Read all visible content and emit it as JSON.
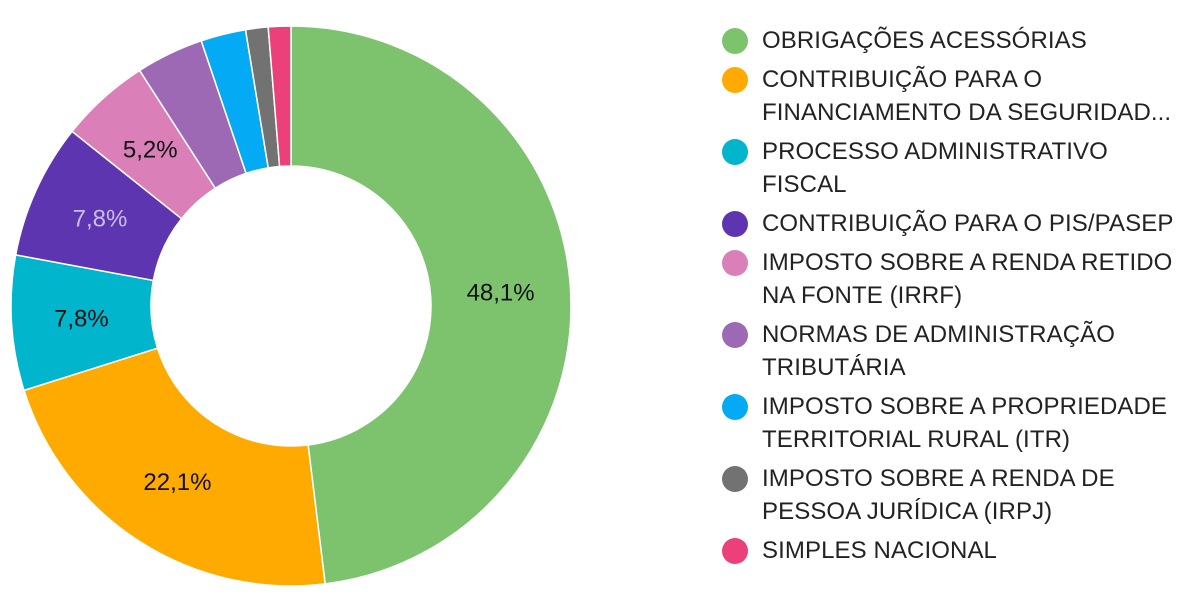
{
  "chart_data": {
    "type": "pie",
    "style": "donut",
    "legend_position": "right",
    "slices": [
      {
        "label": "OBRIGAÇÕES ACESSÓRIAS",
        "value": 48.1,
        "color": "#7dc36e",
        "value_label": "48,1%",
        "label_color": "#111111"
      },
      {
        "label": "CONTRIBUIÇÃO PARA O FINANCIAMENTO DA SEGURIDAD...",
        "value": 22.1,
        "color": "#ffaa00",
        "value_label": "22,1%",
        "label_color": "#111111"
      },
      {
        "label": "PROCESSO ADMINISTRATIVO FISCAL",
        "value": 7.8,
        "color": "#00b5cc",
        "value_label": "7,8%",
        "label_color": "#111111"
      },
      {
        "label": "CONTRIBUIÇÃO PARA O PIS/PASEP",
        "value": 7.8,
        "color": "#5e35b1",
        "value_label": "7,8%",
        "label_color": "#c9bfe6"
      },
      {
        "label": "IMPOSTO SOBRE A RENDA RETIDO NA FONTE (IRRF)",
        "value": 5.2,
        "color": "#da7fb8",
        "value_label": "5,2%",
        "label_color": "#111111"
      },
      {
        "label": "NORMAS DE ADMINISTRAÇÃO TRIBUTÁRIA",
        "value": 3.9,
        "color": "#9e69b4",
        "value_label": "",
        "label_color": "#111111"
      },
      {
        "label": "IMPOSTO SOBRE A PROPRIEDADE TERRITORIAL RURAL (ITR)",
        "value": 2.6,
        "color": "#05aaf5",
        "value_label": "",
        "label_color": "#111111"
      },
      {
        "label": "IMPOSTO SOBRE A RENDA DE PESSOA JURÍDICA (IRPJ)",
        "value": 1.3,
        "color": "#727272",
        "value_label": "",
        "label_color": "#111111"
      },
      {
        "label": "SIMPLES NACIONAL",
        "value": 1.3,
        "color": "#ec407a",
        "value_label": "",
        "label_color": "#111111"
      }
    ]
  },
  "legend": {
    "lines": [
      [
        "OBRIGAÇÕES ACESSÓRIAS"
      ],
      [
        "CONTRIBUIÇÃO PARA O",
        "FINANCIAMENTO DA SEGURIDAD..."
      ],
      [
        "PROCESSO ADMINISTRATIVO",
        "FISCAL"
      ],
      [
        "CONTRIBUIÇÃO PARA O PIS/PASEP"
      ],
      [
        "IMPOSTO SOBRE A RENDA RETIDO",
        "NA FONTE (IRRF)"
      ],
      [
        "NORMAS DE ADMINISTRAÇÃO",
        "TRIBUTÁRIA"
      ],
      [
        "IMPOSTO SOBRE A PROPRIEDADE",
        "TERRITORIAL RURAL (ITR)"
      ],
      [
        "IMPOSTO SOBRE A RENDA DE",
        "PESSOA JURÍDICA (IRPJ)"
      ],
      [
        "SIMPLES NACIONAL"
      ]
    ]
  }
}
